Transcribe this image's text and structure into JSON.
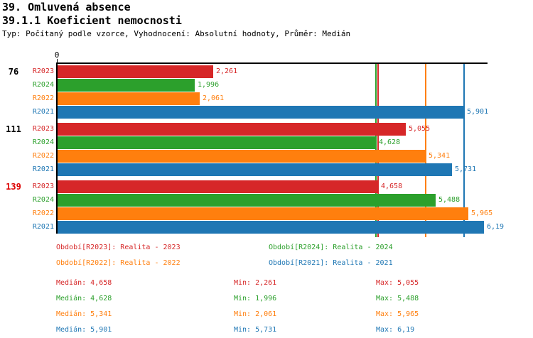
{
  "header": {
    "title_line1": "39. Omluvená absence",
    "title_line2": "39.1.1 Koeficient nemocnosti",
    "meta": "Typ: Počítaný podle vzorce, Vyhodnocení: Absolutní hodnoty, Průměr: Medián"
  },
  "chart_data": {
    "type": "bar",
    "orientation": "horizontal",
    "axis": {
      "origin_tick_label": "0",
      "min": 0
    },
    "series": [
      {
        "name": "R2023",
        "color": "#d62728",
        "legend_label": "Období[R2023]: Realita - 2023",
        "median": 4.658,
        "stats": {
          "median_text": "Medián: 4,658",
          "min_text": "Min: 2,261",
          "max_text": "Max: 5,055"
        }
      },
      {
        "name": "R2024",
        "color": "#2ca02c",
        "legend_label": "Období[R2024]: Realita - 2024",
        "median": 4.628,
        "stats": {
          "median_text": "Medián: 4,628",
          "min_text": "Min: 1,996",
          "max_text": "Max: 5,488"
        }
      },
      {
        "name": "R2022",
        "color": "#ff7f0e",
        "legend_label": "Období[R2022]: Realita - 2022",
        "median": 5.341,
        "stats": {
          "median_text": "Medián: 5,341",
          "min_text": "Min: 2,061",
          "max_text": "Max: 5,965"
        }
      },
      {
        "name": "R2021",
        "color": "#1f77b4",
        "legend_label": "Období[R2021]: Realita - 2021",
        "median": 5.901,
        "stats": {
          "median_text": "Medián: 5,901",
          "min_text": "Min: 5,731",
          "max_text": "Max: 6,19"
        }
      }
    ],
    "groups": [
      {
        "label": "76",
        "label_color": "#000000",
        "bars": [
          {
            "series": "R2023",
            "value": 2.261,
            "value_label": "2,261"
          },
          {
            "series": "R2024",
            "value": 1.996,
            "value_label": "1,996"
          },
          {
            "series": "R2022",
            "value": 2.061,
            "value_label": "2,061"
          },
          {
            "series": "R2021",
            "value": 5.901,
            "value_label": "5,901"
          }
        ]
      },
      {
        "label": "111",
        "label_color": "#000000",
        "bars": [
          {
            "series": "R2023",
            "value": 5.055,
            "value_label": "5,055"
          },
          {
            "series": "R2024",
            "value": 4.628,
            "value_label": "4,628"
          },
          {
            "series": "R2022",
            "value": 5.341,
            "value_label": "5,341"
          },
          {
            "series": "R2021",
            "value": 5.731,
            "value_label": "5,731"
          }
        ]
      },
      {
        "label": "139",
        "label_color": "#dd0000",
        "bars": [
          {
            "series": "R2023",
            "value": 4.658,
            "value_label": "4,658"
          },
          {
            "series": "R2024",
            "value": 5.488,
            "value_label": "5,488"
          },
          {
            "series": "R2022",
            "value": 5.965,
            "value_label": "5,965"
          },
          {
            "series": "R2021",
            "value": 6.19,
            "value_label": "6,19"
          }
        ]
      }
    ]
  }
}
